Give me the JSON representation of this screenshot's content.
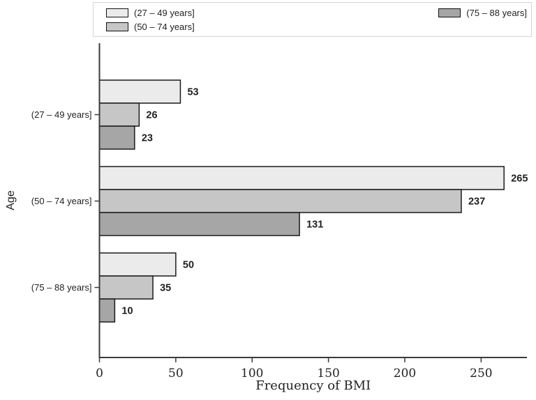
{
  "chart_data": {
    "type": "bar",
    "orientation": "horizontal",
    "xlabel": "Frequency of BMI",
    "ylabel": "Age",
    "categories": [
      "(27 – 49 years]",
      "(50 – 74 years]",
      "(75 – 88 years]"
    ],
    "series": [
      {
        "name": "(27 – 49 years]",
        "color": "#ebebeb",
        "values": [
          53,
          265,
          50
        ]
      },
      {
        "name": "(50 – 74 years]",
        "color": "#c6c6c6",
        "values": [
          26,
          237,
          35
        ]
      },
      {
        "name": "(75 – 88 years]",
        "color": "#a6a6a6",
        "values": [
          23,
          131,
          10
        ]
      }
    ],
    "x_ticks": [
      0,
      50,
      100,
      150,
      200,
      250
    ],
    "xlim": [
      0,
      280
    ],
    "bar_border_color": "#1a1a1a",
    "axis_color": "#3a3a3a",
    "value_label_color": "#1f1f1f",
    "legend_position": "top",
    "grid": false,
    "value_labels": true
  }
}
